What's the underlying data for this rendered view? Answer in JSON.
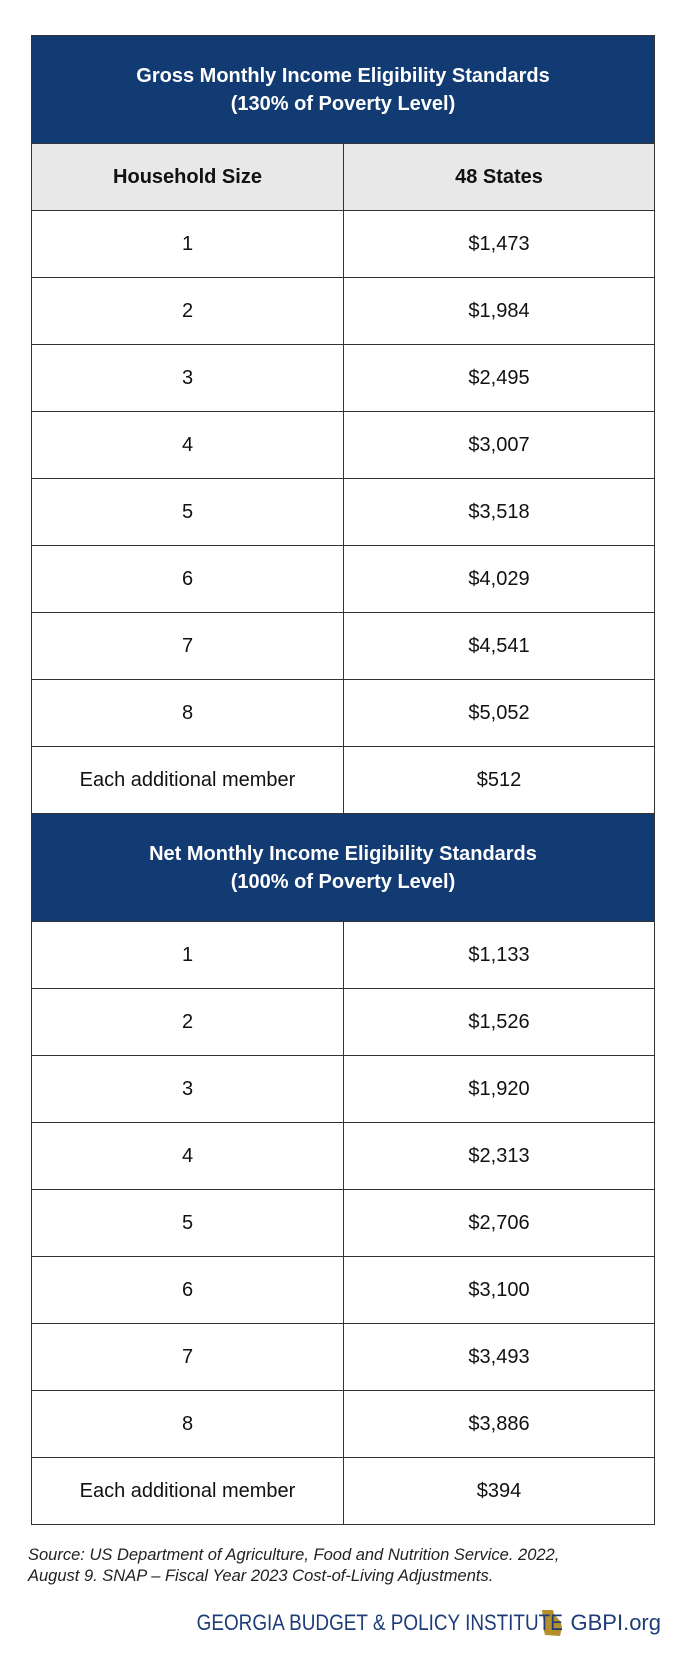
{
  "gross": {
    "title": "Gross Monthly Income Eligibility Standards",
    "subtitle": "(130% of Poverty Level)",
    "columns": [
      "Household Size",
      "48 States"
    ],
    "rows": [
      [
        "1",
        "$1,473"
      ],
      [
        "2",
        "$1,984"
      ],
      [
        "3",
        "$2,495"
      ],
      [
        "4",
        "$3,007"
      ],
      [
        "5",
        "$3,518"
      ],
      [
        "6",
        "$4,029"
      ],
      [
        "7",
        "$4,541"
      ],
      [
        "8",
        "$5,052"
      ],
      [
        "Each additional member",
        "$512"
      ]
    ]
  },
  "net": {
    "title": "Net Monthly Income Eligibility Standards",
    "subtitle": "(100% of Poverty Level)",
    "rows": [
      [
        "1",
        "$1,133"
      ],
      [
        "2",
        "$1,526"
      ],
      [
        "3",
        "$1,920"
      ],
      [
        "4",
        "$2,313"
      ],
      [
        "5",
        "$2,706"
      ],
      [
        "6",
        "$3,100"
      ],
      [
        "7",
        "$3,493"
      ],
      [
        "8",
        "$3,886"
      ],
      [
        "Each additional member",
        "$394"
      ]
    ]
  },
  "source": {
    "line1": "Source: US Department of Agriculture, Food and Nutrition Service. 2022,",
    "line2": "August 9. SNAP – Fiscal Year 2023 Cost-of-Living Adjustments."
  },
  "footer": {
    "org": "GEORGIA BUDGET & POLICY INSTITUTE",
    "site": "GBPI.org"
  }
}
